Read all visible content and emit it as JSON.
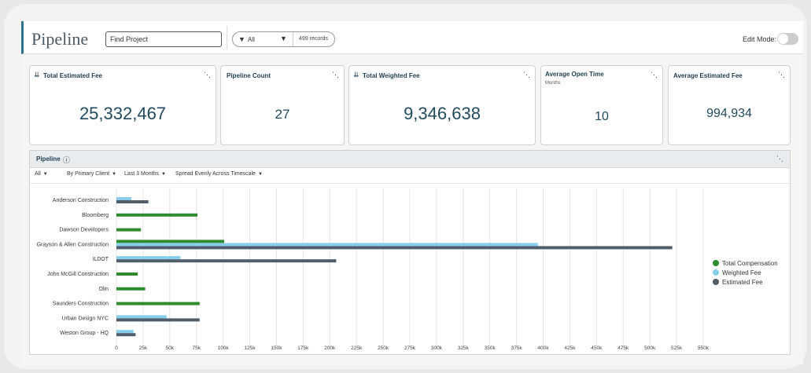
{
  "header": {
    "title": "Pipeline",
    "search_placeholder": "Find Project",
    "filter_icon": "filter-icon",
    "filter_value": "All",
    "record_count": "499 records",
    "edit_mode_label": "Edit Mode:",
    "edit_mode_on": false
  },
  "cards": [
    {
      "title": "Total Estimated Fee",
      "value": "25,332,467",
      "icon": "double-chevron-icon"
    },
    {
      "title": "Pipeline Count",
      "value": "27"
    },
    {
      "title": "Total Weighted Fee",
      "value": "9,346,638",
      "icon": "double-chevron-icon"
    },
    {
      "title": "Average Open Time",
      "subtitle": "Months",
      "value": "10"
    },
    {
      "title": "Average Estimated Fee",
      "value": "994,934"
    }
  ],
  "panel": {
    "title": "Pipeline",
    "info_icon": "info-icon",
    "expand_icon": "expand-icon",
    "filters": [
      "All",
      "By Primary Client",
      "Last 3 Months",
      "Spread Evenly Across Timescale"
    ]
  },
  "chart_data": {
    "type": "bar",
    "orientation": "horizontal",
    "categories": [
      "Anderson Construction",
      "Bloomberg",
      "Dawson Developers",
      "Grayson & Allen Construction",
      "ILDOT",
      "John McGill Construction",
      "Olin",
      "Saunders Construction",
      "Urban Design NYC",
      "Weston Group - HQ"
    ],
    "series": [
      {
        "name": "Total Compensation",
        "color": "#2e8b2e",
        "values": [
          0,
          76000,
          23000,
          101000,
          0,
          20000,
          27000,
          78000,
          0,
          0
        ]
      },
      {
        "name": "Weighted Fee",
        "color": "#87ceeb",
        "values": [
          14000,
          0,
          0,
          395000,
          60000,
          0,
          0,
          0,
          47000,
          16000
        ]
      },
      {
        "name": "Estimated Fee",
        "color": "#505e6b",
        "values": [
          30000,
          0,
          0,
          521000,
          206000,
          0,
          0,
          0,
          78000,
          18000
        ]
      }
    ],
    "xticks": [
      "0",
      "25k",
      "50k",
      "75k",
      "100k",
      "125k",
      "150k",
      "175k",
      "200k",
      "225k",
      "250k",
      "275k",
      "300k",
      "325k",
      "350k",
      "375k",
      "400k",
      "425k",
      "450k",
      "475k",
      "500k",
      "525k",
      "550k"
    ],
    "xlim": [
      0,
      550000
    ],
    "grid": true,
    "legend_position": "right"
  }
}
